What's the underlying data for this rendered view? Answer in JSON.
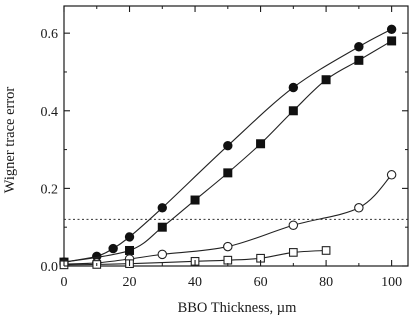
{
  "chart_data": {
    "type": "line",
    "xlabel": "BBO Thickness, µm",
    "ylabel": "Wigner trace error",
    "xlim": [
      0,
      105
    ],
    "ylim": [
      0,
      0.67
    ],
    "x_ticks": [
      0,
      20,
      40,
      60,
      80,
      100
    ],
    "y_ticks": [
      0,
      0.2,
      0.4,
      0.6
    ],
    "x_tick_labels": [
      "0",
      "20",
      "40",
      "60",
      "80",
      "100"
    ],
    "y_tick_labels": [
      "0.0",
      "0.2",
      "0.4",
      "0.6"
    ],
    "grid": false,
    "reference_line": {
      "y": 0.12,
      "style": "dotted"
    },
    "series": [
      {
        "marker": "filled-circle",
        "x": [
          0,
          10,
          15,
          20,
          30,
          50,
          70,
          90,
          100
        ],
        "y": [
          0.01,
          0.025,
          0.045,
          0.075,
          0.15,
          0.31,
          0.46,
          0.565,
          0.61
        ]
      },
      {
        "marker": "filled-square",
        "x": [
          0,
          20,
          30,
          40,
          50,
          60,
          70,
          80,
          90,
          100
        ],
        "y": [
          0.01,
          0.04,
          0.1,
          0.17,
          0.24,
          0.315,
          0.4,
          0.48,
          0.53,
          0.58
        ]
      },
      {
        "marker": "open-circle",
        "x": [
          0,
          10,
          20,
          30,
          50,
          70,
          90,
          100
        ],
        "y": [
          0.005,
          0.008,
          0.018,
          0.03,
          0.05,
          0.105,
          0.15,
          0.235
        ]
      },
      {
        "marker": "open-square",
        "x": [
          0,
          10,
          20,
          40,
          50,
          60,
          70,
          80
        ],
        "y": [
          0.003,
          0.004,
          0.006,
          0.012,
          0.015,
          0.02,
          0.035,
          0.04
        ]
      }
    ]
  }
}
